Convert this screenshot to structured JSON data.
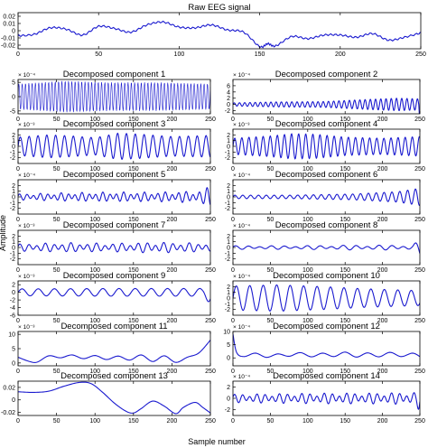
{
  "figure": {
    "ylabel": "Amplitude",
    "xlabel": "Sample number",
    "line_color": "#1a1acf",
    "axes_color": "#000000"
  },
  "chart_data": [
    {
      "id": "raw",
      "type": "line",
      "title": "Raw EEG signal",
      "xlim": [
        0,
        250
      ],
      "ylim": [
        -0.025,
        0.025
      ],
      "yticks": [
        0.02,
        0.01,
        0,
        -0.01,
        -0.02
      ],
      "ytick_labels": [
        "0.02",
        "0.01",
        "0",
        "-0.01",
        "-0.02"
      ],
      "xticks": [
        0,
        50,
        100,
        150,
        200,
        250
      ],
      "exponent": "",
      "x": [
        0,
        10,
        20,
        30,
        40,
        50,
        60,
        70,
        80,
        90,
        100,
        110,
        120,
        130,
        140,
        150,
        155,
        160,
        170,
        180,
        190,
        200,
        210,
        220,
        230,
        240,
        250
      ],
      "y": [
        -0.007,
        -0.005,
        0.004,
        0.002,
        -0.006,
        0.006,
        0.003,
        -0.002,
        0.008,
        0.012,
        0.005,
        0.004,
        0.008,
        0.001,
        -0.002,
        -0.022,
        -0.018,
        -0.021,
        -0.008,
        -0.011,
        -0.006,
        -0.006,
        -0.009,
        -0.004,
        -0.013,
        -0.009,
        -0.003
      ]
    },
    {
      "id": "c1",
      "type": "line",
      "title": "Decomposed component 1",
      "xlim": [
        0,
        250
      ],
      "ylim": [
        -6,
        6
      ],
      "yticks": [
        5,
        0,
        -5
      ],
      "ytick_labels": [
        "5",
        "0",
        "-5"
      ],
      "exponent": "× 10⁻⁴",
      "xticks": [
        0,
        50,
        100,
        150,
        200,
        250
      ],
      "wave": {
        "periods": [
          4.3
        ],
        "env_x": [
          0,
          60,
          120,
          180,
          250
        ],
        "env_y": [
          4.5,
          5.5,
          5,
          5,
          4.5
        ],
        "offset": 0
      }
    },
    {
      "id": "c2",
      "type": "line",
      "title": "Decomposed component 2",
      "xlim": [
        0,
        250
      ],
      "ylim": [
        -3,
        8
      ],
      "yticks": [
        6,
        4,
        2,
        0,
        -2
      ],
      "ytick_labels": [
        "6",
        "4",
        "2",
        "0",
        "-2"
      ],
      "exponent": "× 10⁻⁴",
      "xticks": [
        0,
        50,
        100,
        150,
        200,
        250
      ],
      "wave": {
        "periods": [
          7
        ],
        "env_x": [
          0,
          60,
          120,
          180,
          220,
          248,
          250
        ],
        "env_y": [
          0.5,
          0.8,
          0.9,
          1.6,
          2,
          1.8,
          7
        ],
        "offset": 0
      }
    },
    {
      "id": "c3",
      "type": "line",
      "title": "Decomposed component 3",
      "xlim": [
        0,
        250
      ],
      "ylim": [
        -3,
        3
      ],
      "yticks": [
        2,
        1,
        0,
        -1,
        -2
      ],
      "ytick_labels": [
        "2",
        "1",
        "0",
        "-1",
        "-2"
      ],
      "exponent": "× 10⁻³",
      "xticks": [
        0,
        50,
        100,
        150,
        200,
        250
      ],
      "wave": {
        "periods": [
          11.5
        ],
        "env_x": [
          0,
          40,
          70,
          100,
          130,
          160,
          200,
          250
        ],
        "env_y": [
          1.6,
          2,
          1.8,
          1.5,
          2.3,
          2.1,
          1.7,
          1.9
        ],
        "offset": 0
      }
    },
    {
      "id": "c4",
      "type": "line",
      "title": "Decomposed component 4",
      "xlim": [
        0,
        250
      ],
      "ylim": [
        -3,
        3
      ],
      "yticks": [
        2,
        1,
        0,
        -1,
        -2
      ],
      "ytick_labels": [
        "2",
        "1",
        "0",
        "-1",
        "-2"
      ],
      "exponent": "× 10⁻³",
      "xticks": [
        0,
        50,
        100,
        150,
        200,
        250
      ],
      "wave": {
        "periods": [
          9.5
        ],
        "env_x": [
          0,
          50,
          80,
          110,
          150,
          200,
          250
        ],
        "env_y": [
          1.4,
          1.8,
          2.2,
          2.1,
          1.6,
          1.4,
          1.7
        ],
        "offset": 0
      }
    },
    {
      "id": "c5",
      "type": "line",
      "title": "Decomposed component 5",
      "xlim": [
        0,
        250
      ],
      "ylim": [
        -3,
        3
      ],
      "yticks": [
        2,
        1,
        0,
        -1,
        -2
      ],
      "ytick_labels": [
        "2",
        "1",
        "0",
        "-1",
        "-2"
      ],
      "exponent": "× 10⁻⁴",
      "xticks": [
        0,
        50,
        100,
        150,
        200,
        250
      ],
      "wave": {
        "periods": [
          9,
          13.7
        ],
        "env_x": [
          0,
          60,
          120,
          180,
          240,
          250
        ],
        "env_y": [
          0.5,
          0.7,
          0.8,
          0.8,
          1,
          2.2
        ],
        "offset": 0
      }
    },
    {
      "id": "c6",
      "type": "line",
      "title": "Decomposed component 6",
      "xlim": [
        0,
        250
      ],
      "ylim": [
        -3,
        3
      ],
      "yticks": [
        2,
        1,
        0,
        -1,
        -2
      ],
      "ytick_labels": [
        "2",
        "1",
        "0",
        "-1",
        "-2"
      ],
      "exponent": "× 10⁻⁴",
      "xticks": [
        0,
        50,
        100,
        150,
        200,
        250
      ],
      "wave": {
        "periods": [
          10.5
        ],
        "env_x": [
          0,
          80,
          160,
          220,
          250
        ],
        "env_y": [
          0.3,
          0.3,
          0.5,
          0.9,
          1.5
        ],
        "offset": 0
      }
    },
    {
      "id": "c7",
      "type": "line",
      "title": "Decomposed component 7",
      "xlim": [
        0,
        250
      ],
      "ylim": [
        -3,
        3
      ],
      "yticks": [
        2,
        1,
        0,
        -1,
        -2
      ],
      "ytick_labels": [
        "2",
        "1",
        "0",
        "-1",
        "-2"
      ],
      "exponent": "× 10⁻³",
      "xticks": [
        0,
        50,
        100,
        150,
        200,
        250
      ],
      "wave": {
        "periods": [
          11,
          17
        ],
        "env_x": [
          0,
          60,
          120,
          180,
          250
        ],
        "env_y": [
          0.6,
          0.8,
          0.7,
          0.9,
          0.7
        ],
        "offset": 0
      }
    },
    {
      "id": "c8",
      "type": "line",
      "title": "Decomposed component 8",
      "xlim": [
        0,
        250
      ],
      "ylim": [
        -3,
        3
      ],
      "yticks": [
        2,
        1,
        0,
        -1,
        -2
      ],
      "ytick_labels": [
        "2",
        "1",
        "0",
        "-1",
        "-2"
      ],
      "exponent": "× 10⁻⁴",
      "xticks": [
        0,
        50,
        100,
        150,
        200,
        250
      ],
      "wave": {
        "periods": [
          16,
          24
        ],
        "env_x": [
          0,
          80,
          160,
          240,
          250
        ],
        "env_y": [
          0.3,
          0.3,
          0.4,
          0.4,
          1.4
        ],
        "offset": 0
      }
    },
    {
      "id": "c9",
      "type": "line",
      "title": "Decomposed component 9",
      "xlim": [
        0,
        250
      ],
      "ylim": [
        -6,
        3
      ],
      "yticks": [
        2,
        0,
        -2,
        -4,
        -6
      ],
      "ytick_labels": [
        "2",
        "0",
        "-2",
        "-4",
        "-6"
      ],
      "exponent": "× 10⁻³",
      "xticks": [
        0,
        50,
        100,
        150,
        200,
        250
      ],
      "wave": {
        "periods": [
          21
        ],
        "env_x": [
          0,
          120,
          240,
          250
        ],
        "env_y": [
          0.9,
          1,
          1,
          3
        ],
        "offset": 0
      }
    },
    {
      "id": "c10",
      "type": "line",
      "title": "Decomposed component 10",
      "xlim": [
        0,
        250
      ],
      "ylim": [
        -3,
        3
      ],
      "yticks": [
        2,
        1,
        0,
        -1,
        -2
      ],
      "ytick_labels": [
        "2",
        "1",
        "0",
        "-1",
        "-2"
      ],
      "exponent": "× 10⁻⁴",
      "xticks": [
        0,
        50,
        100,
        150,
        200,
        250
      ],
      "wave": {
        "periods": [
          18
        ],
        "env_x": [
          0,
          60,
          120,
          180,
          250
        ],
        "env_y": [
          2.1,
          2.3,
          2,
          1.6,
          1.3
        ],
        "offset": 0
      }
    },
    {
      "id": "c11",
      "type": "line",
      "title": "Decomposed component 11",
      "xlim": [
        0,
        250
      ],
      "ylim": [
        -1,
        11
      ],
      "yticks": [
        10,
        5,
        0
      ],
      "ytick_labels": [
        "10",
        "5",
        "0"
      ],
      "exponent": "× 10⁻³",
      "xticks": [
        0,
        50,
        100,
        150,
        200,
        250
      ],
      "x": [
        0,
        15,
        25,
        40,
        55,
        70,
        85,
        100,
        115,
        130,
        145,
        160,
        175,
        190,
        205,
        220,
        235,
        250
      ],
      "y": [
        2,
        0.5,
        0.3,
        2.5,
        1.8,
        2.8,
        1.5,
        2.6,
        1.2,
        2.4,
        1,
        2.8,
        0.5,
        2.5,
        0.2,
        2,
        3.5,
        8
      ]
    },
    {
      "id": "c12",
      "type": "line",
      "title": "Decomposed component 12",
      "xlim": [
        0,
        250
      ],
      "ylim": [
        -3,
        10
      ],
      "yticks": [
        10,
        5,
        0
      ],
      "ytick_labels": [
        "10",
        "5",
        "0"
      ],
      "exponent": "× 10⁻⁴",
      "xticks": [
        0,
        50,
        100,
        150,
        200,
        250
      ],
      "x": [
        0,
        5,
        15,
        30,
        45,
        60,
        75,
        90,
        105,
        120,
        135,
        150,
        165,
        180,
        195,
        210,
        225,
        240,
        250
      ],
      "y": [
        9,
        2,
        0.5,
        1.8,
        0.2,
        1.5,
        0.6,
        2,
        0.4,
        1.8,
        0.5,
        2.2,
        0.3,
        1.9,
        0.4,
        2.1,
        0.5,
        1.8,
        0.5
      ]
    },
    {
      "id": "c13",
      "type": "line",
      "title": "Decomposed component 13",
      "xlim": [
        0,
        250
      ],
      "ylim": [
        -0.025,
        0.03
      ],
      "yticks": [
        0.02,
        0,
        -0.02
      ],
      "ytick_labels": [
        "0.02",
        "0",
        "-0.02"
      ],
      "exponent": "",
      "xticks": [
        0,
        50,
        100,
        150,
        200,
        250
      ],
      "x": [
        0,
        20,
        40,
        60,
        80,
        95,
        110,
        125,
        140,
        150,
        160,
        175,
        190,
        205,
        215,
        230,
        240,
        250
      ],
      "y": [
        0.013,
        0.012,
        0.014,
        0.022,
        0.028,
        0.026,
        0.012,
        -0.005,
        -0.018,
        -0.021,
        -0.014,
        -0.002,
        -0.01,
        -0.022,
        -0.012,
        -0.004,
        -0.012,
        -0.021
      ]
    },
    {
      "id": "c14",
      "type": "line",
      "title": "Decomposed component 14",
      "xlim": [
        0,
        250
      ],
      "ylim": [
        -3,
        3
      ],
      "yticks": [
        2,
        0,
        -2
      ],
      "ytick_labels": [
        "2",
        "0",
        "-2"
      ],
      "exponent": "× 10⁻⁴",
      "xticks": [
        0,
        50,
        100,
        150,
        200,
        250
      ],
      "wave": {
        "periods": [
          10,
          15
        ],
        "env_x": [
          0,
          60,
          120,
          180,
          245,
          250
        ],
        "env_y": [
          0.7,
          0.8,
          0.9,
          0.9,
          1,
          2.4
        ],
        "offset": 0
      }
    }
  ]
}
